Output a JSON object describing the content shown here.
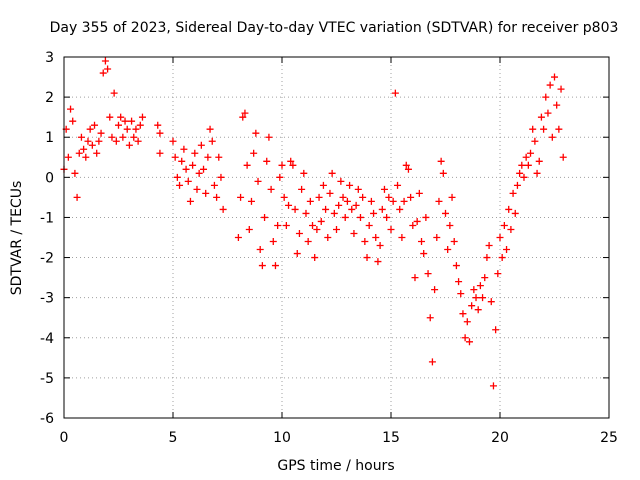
{
  "chart_data": {
    "type": "scatter",
    "title": "Day 355 of 2023, Sidereal Day-to-day VTEC variation (SDTVAR) for receiver p803",
    "xlabel": "GPS time / hours",
    "ylabel": "SDTVAR / TECUs",
    "xlim": [
      0,
      25
    ],
    "ylim": [
      -6,
      3
    ],
    "x_ticks": [
      "0",
      "5",
      "10",
      "15",
      "20",
      "25"
    ],
    "y_ticks": [
      "3",
      "2",
      "1",
      "0",
      "-1",
      "-2",
      "-3",
      "-4",
      "-5",
      "-6"
    ],
    "grid": true,
    "marker": "plus",
    "color": "#ff0000",
    "series": [
      {
        "name": "p803",
        "points": [
          [
            0.0,
            0.2
          ],
          [
            0.1,
            1.2
          ],
          [
            0.2,
            0.5
          ],
          [
            0.3,
            1.7
          ],
          [
            0.4,
            1.4
          ],
          [
            0.5,
            0.1
          ],
          [
            0.6,
            -0.5
          ],
          [
            0.7,
            0.6
          ],
          [
            0.8,
            1.0
          ],
          [
            0.9,
            0.7
          ],
          [
            1.0,
            0.5
          ],
          [
            1.1,
            0.9
          ],
          [
            1.2,
            1.2
          ],
          [
            1.3,
            0.8
          ],
          [
            1.4,
            1.3
          ],
          [
            1.5,
            0.6
          ],
          [
            1.6,
            0.9
          ],
          [
            1.7,
            1.1
          ],
          [
            1.8,
            2.6
          ],
          [
            1.9,
            2.9
          ],
          [
            2.0,
            2.7
          ],
          [
            2.1,
            1.5
          ],
          [
            2.2,
            1.0
          ],
          [
            2.3,
            2.1
          ],
          [
            2.4,
            0.9
          ],
          [
            2.5,
            1.3
          ],
          [
            2.6,
            1.5
          ],
          [
            2.7,
            1.0
          ],
          [
            2.8,
            1.4
          ],
          [
            2.9,
            1.2
          ],
          [
            3.0,
            0.8
          ],
          [
            3.1,
            1.4
          ],
          [
            3.2,
            1.0
          ],
          [
            3.3,
            1.2
          ],
          [
            3.4,
            0.9
          ],
          [
            3.5,
            1.3
          ],
          [
            3.6,
            1.5
          ],
          [
            4.3,
            1.3
          ],
          [
            4.4,
            0.6
          ],
          [
            4.4,
            1.1
          ],
          [
            5.0,
            0.9
          ],
          [
            5.1,
            0.5
          ],
          [
            5.2,
            0.0
          ],
          [
            5.3,
            -0.2
          ],
          [
            5.4,
            0.4
          ],
          [
            5.5,
            0.7
          ],
          [
            5.6,
            0.2
          ],
          [
            5.7,
            -0.1
          ],
          [
            5.8,
            -0.6
          ],
          [
            5.9,
            0.3
          ],
          [
            6.0,
            0.6
          ],
          [
            6.1,
            -0.3
          ],
          [
            6.2,
            0.1
          ],
          [
            6.3,
            0.8
          ],
          [
            6.4,
            0.2
          ],
          [
            6.5,
            -0.4
          ],
          [
            6.6,
            0.5
          ],
          [
            6.7,
            1.2
          ],
          [
            6.8,
            0.9
          ],
          [
            6.9,
            -0.2
          ],
          [
            7.0,
            -0.5
          ],
          [
            7.1,
            0.5
          ],
          [
            7.2,
            0.0
          ],
          [
            7.3,
            -0.8
          ],
          [
            8.0,
            -1.5
          ],
          [
            8.1,
            -0.5
          ],
          [
            8.2,
            1.5
          ],
          [
            8.3,
            1.6
          ],
          [
            8.4,
            0.3
          ],
          [
            8.5,
            -1.3
          ],
          [
            8.6,
            -0.6
          ],
          [
            8.7,
            0.6
          ],
          [
            8.8,
            1.1
          ],
          [
            8.9,
            -0.1
          ],
          [
            9.0,
            -1.8
          ],
          [
            9.1,
            -2.2
          ],
          [
            9.2,
            -1.0
          ],
          [
            9.3,
            0.4
          ],
          [
            9.4,
            1.0
          ],
          [
            9.5,
            -0.3
          ],
          [
            9.6,
            -1.6
          ],
          [
            9.7,
            -2.2
          ],
          [
            9.8,
            -1.2
          ],
          [
            9.9,
            0.0
          ],
          [
            10.0,
            0.3
          ],
          [
            10.1,
            -0.5
          ],
          [
            10.2,
            -1.2
          ],
          [
            10.3,
            -0.7
          ],
          [
            10.4,
            0.4
          ],
          [
            10.5,
            0.3
          ],
          [
            10.6,
            -0.8
          ],
          [
            10.7,
            -1.9
          ],
          [
            10.8,
            -1.4
          ],
          [
            10.9,
            -0.3
          ],
          [
            11.0,
            0.1
          ],
          [
            11.1,
            -0.9
          ],
          [
            11.2,
            -1.6
          ],
          [
            11.3,
            -0.6
          ],
          [
            11.4,
            -1.2
          ],
          [
            11.5,
            -2.0
          ],
          [
            11.6,
            -1.3
          ],
          [
            11.7,
            -0.5
          ],
          [
            11.8,
            -1.1
          ],
          [
            11.9,
            -0.2
          ],
          [
            12.0,
            -0.8
          ],
          [
            12.1,
            -1.5
          ],
          [
            12.2,
            -0.4
          ],
          [
            12.3,
            0.1
          ],
          [
            12.4,
            -0.9
          ],
          [
            12.5,
            -1.3
          ],
          [
            12.6,
            -0.7
          ],
          [
            12.7,
            -0.1
          ],
          [
            12.8,
            -0.5
          ],
          [
            12.9,
            -1.0
          ],
          [
            13.0,
            -0.6
          ],
          [
            13.1,
            -0.2
          ],
          [
            13.2,
            -0.8
          ],
          [
            13.3,
            -1.4
          ],
          [
            13.4,
            -0.7
          ],
          [
            13.5,
            -0.3
          ],
          [
            13.6,
            -1.0
          ],
          [
            13.7,
            -0.5
          ],
          [
            13.8,
            -1.6
          ],
          [
            13.9,
            -2.0
          ],
          [
            14.0,
            -1.2
          ],
          [
            14.1,
            -0.6
          ],
          [
            14.2,
            -0.9
          ],
          [
            14.3,
            -1.5
          ],
          [
            14.4,
            -2.1
          ],
          [
            14.5,
            -1.7
          ],
          [
            14.6,
            -0.8
          ],
          [
            14.7,
            -0.3
          ],
          [
            14.8,
            -1.0
          ],
          [
            14.9,
            -0.5
          ],
          [
            15.0,
            -1.3
          ],
          [
            15.1,
            -0.6
          ],
          [
            15.2,
            2.1
          ],
          [
            15.3,
            -0.2
          ],
          [
            15.4,
            -0.8
          ],
          [
            15.5,
            -1.5
          ],
          [
            15.6,
            -0.6
          ],
          [
            15.7,
            0.3
          ],
          [
            15.8,
            0.2
          ],
          [
            15.9,
            -0.5
          ],
          [
            16.0,
            -1.2
          ],
          [
            16.1,
            -2.5
          ],
          [
            16.2,
            -1.1
          ],
          [
            16.3,
            -0.4
          ],
          [
            16.4,
            -1.6
          ],
          [
            16.5,
            -1.9
          ],
          [
            16.6,
            -1.0
          ],
          [
            16.7,
            -2.4
          ],
          [
            16.8,
            -3.5
          ],
          [
            16.9,
            -4.6
          ],
          [
            17.0,
            -2.8
          ],
          [
            17.1,
            -1.5
          ],
          [
            17.2,
            -0.6
          ],
          [
            17.3,
            0.4
          ],
          [
            17.4,
            0.1
          ],
          [
            17.5,
            -0.9
          ],
          [
            17.6,
            -1.8
          ],
          [
            17.7,
            -1.2
          ],
          [
            17.8,
            -0.5
          ],
          [
            17.9,
            -1.6
          ],
          [
            18.0,
            -2.2
          ],
          [
            18.1,
            -2.6
          ],
          [
            18.2,
            -2.9
          ],
          [
            18.3,
            -3.4
          ],
          [
            18.4,
            -4.0
          ],
          [
            18.5,
            -3.6
          ],
          [
            18.6,
            -4.1
          ],
          [
            18.7,
            -3.2
          ],
          [
            18.8,
            -2.8
          ],
          [
            18.9,
            -3.0
          ],
          [
            19.0,
            -3.3
          ],
          [
            19.1,
            -2.7
          ],
          [
            19.2,
            -3.0
          ],
          [
            19.3,
            -2.5
          ],
          [
            19.4,
            -2.0
          ],
          [
            19.5,
            -1.7
          ],
          [
            19.6,
            -3.1
          ],
          [
            19.7,
            -5.2
          ],
          [
            19.8,
            -3.8
          ],
          [
            19.9,
            -2.4
          ],
          [
            20.0,
            -1.5
          ],
          [
            20.1,
            -2.0
          ],
          [
            20.2,
            -1.2
          ],
          [
            20.3,
            -1.8
          ],
          [
            20.4,
            -0.8
          ],
          [
            20.5,
            -1.3
          ],
          [
            20.6,
            -0.4
          ],
          [
            20.7,
            -0.9
          ],
          [
            20.8,
            -0.2
          ],
          [
            20.9,
            0.1
          ],
          [
            21.0,
            0.3
          ],
          [
            21.1,
            0.0
          ],
          [
            21.2,
            0.5
          ],
          [
            21.3,
            0.3
          ],
          [
            21.4,
            0.6
          ],
          [
            21.5,
            1.2
          ],
          [
            21.6,
            0.9
          ],
          [
            21.7,
            0.1
          ],
          [
            21.8,
            0.4
          ],
          [
            21.9,
            1.5
          ],
          [
            22.0,
            1.2
          ],
          [
            22.1,
            2.0
          ],
          [
            22.2,
            1.6
          ],
          [
            22.3,
            2.3
          ],
          [
            22.4,
            1.0
          ],
          [
            22.5,
            2.5
          ],
          [
            22.6,
            1.8
          ],
          [
            22.7,
            1.2
          ],
          [
            22.8,
            2.2
          ],
          [
            22.9,
            0.5
          ]
        ]
      }
    ]
  }
}
